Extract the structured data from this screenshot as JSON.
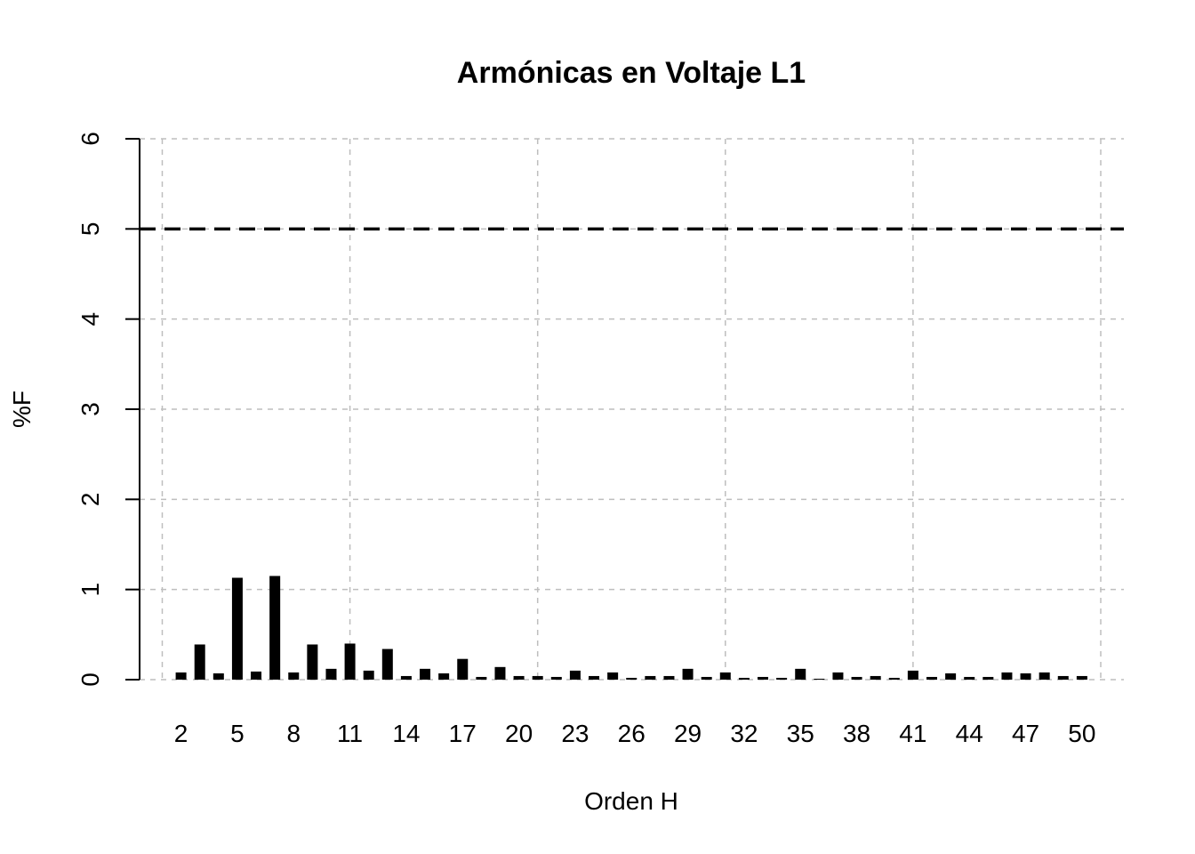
{
  "chart_data": {
    "type": "bar",
    "title": "Armónicas en Voltaje L1",
    "xlabel": "Orden H",
    "ylabel": "%F",
    "ylim": [
      0,
      6
    ],
    "y_ticks": [
      0,
      1,
      2,
      3,
      4,
      5,
      6
    ],
    "x_tick_labels": [
      "2",
      "5",
      "8",
      "11",
      "14",
      "17",
      "20",
      "23",
      "26",
      "29",
      "32",
      "35",
      "38",
      "41",
      "44",
      "47",
      "50"
    ],
    "x_grid_at": [
      1,
      11,
      21,
      31,
      41,
      51
    ],
    "reference_line": 5,
    "grid": true,
    "colors": {
      "bars": "#000000",
      "grid": "#bebebe",
      "reference": "#000000"
    },
    "categories": [
      2,
      3,
      4,
      5,
      6,
      7,
      8,
      9,
      10,
      11,
      12,
      13,
      14,
      15,
      16,
      17,
      18,
      19,
      20,
      21,
      22,
      23,
      24,
      25,
      26,
      27,
      28,
      29,
      30,
      31,
      32,
      33,
      34,
      35,
      36,
      37,
      38,
      39,
      40,
      41,
      42,
      43,
      44,
      45,
      46,
      47,
      48,
      49,
      50
    ],
    "values": [
      0.08,
      0.39,
      0.07,
      1.13,
      0.09,
      1.15,
      0.08,
      0.39,
      0.12,
      0.4,
      0.1,
      0.34,
      0.04,
      0.12,
      0.07,
      0.23,
      0.03,
      0.14,
      0.04,
      0.04,
      0.03,
      0.1,
      0.04,
      0.08,
      0.02,
      0.04,
      0.04,
      0.12,
      0.03,
      0.08,
      0.02,
      0.03,
      0.02,
      0.12,
      0.01,
      0.08,
      0.03,
      0.04,
      0.02,
      0.1,
      0.03,
      0.07,
      0.03,
      0.03,
      0.08,
      0.07,
      0.08,
      0.04,
      0.04
    ]
  }
}
